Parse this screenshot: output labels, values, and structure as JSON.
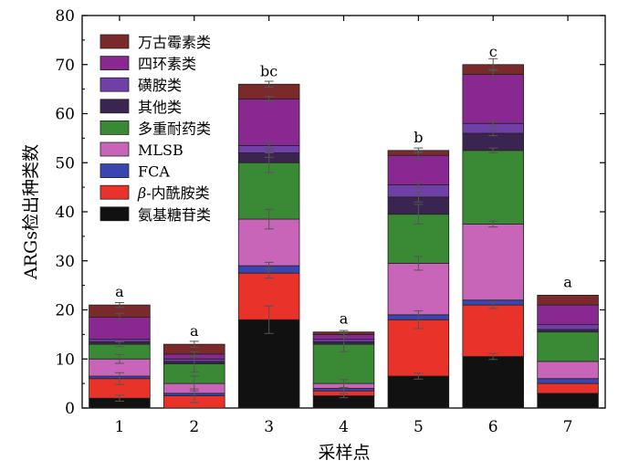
{
  "chart_data": {
    "type": "bar",
    "stacked": true,
    "categories": [
      "1",
      "2",
      "3",
      "4",
      "5",
      "6",
      "7"
    ],
    "xlabel": "采样点",
    "ylabel": "ARGs检出种类数",
    "ylim": [
      0,
      80
    ],
    "yticks": [
      0,
      10,
      20,
      30,
      40,
      50,
      60,
      70,
      80
    ],
    "grid": false,
    "legend_position": "top-left",
    "series": [
      {
        "name": "氨基糖苷类",
        "color": "#111111",
        "values": [
          2,
          0,
          18,
          2.5,
          6.5,
          10.5,
          3
        ],
        "errors": [
          0.6,
          0,
          2.8,
          0.4,
          0.6,
          0.6,
          0
        ]
      },
      {
        "name": "β-内酰胺类",
        "color": "#e8322a",
        "values": [
          4,
          2.5,
          9.5,
          1,
          11.5,
          10.5,
          2
        ],
        "errors": [
          1.2,
          1.4,
          1,
          0.6,
          1.8,
          0.7,
          0
        ]
      },
      {
        "name": "FCA",
        "color": "#3a46b0",
        "values": [
          0.5,
          0.5,
          1.5,
          0.5,
          1,
          1,
          1
        ],
        "errors": [
          0,
          0,
          0.7,
          0,
          0,
          0,
          0
        ]
      },
      {
        "name": "MLSB",
        "color": "#c865b8",
        "values": [
          3.5,
          2,
          9.5,
          1,
          10.5,
          15.5,
          3.5
        ],
        "errors": [
          0.9,
          1.5,
          2,
          0.8,
          1.4,
          0.6,
          0
        ]
      },
      {
        "name": "多重耐药类",
        "color": "#3a8a35",
        "values": [
          3,
          4,
          11.5,
          8,
          10,
          15,
          6
        ],
        "errors": [
          0.5,
          1.7,
          2,
          1.5,
          2,
          0.5,
          0
        ]
      },
      {
        "name": "其他类",
        "color": "#3a2550",
        "values": [
          0.5,
          0.5,
          2,
          0.5,
          3.5,
          3.5,
          0.5
        ],
        "errors": [
          0,
          0,
          0.9,
          0,
          1,
          0.5,
          0
        ]
      },
      {
        "name": "磺胺类",
        "color": "#7040a8",
        "values": [
          0.5,
          0.5,
          1.5,
          0.5,
          2.5,
          2,
          1
        ],
        "errors": [
          0,
          0,
          0.7,
          0,
          0.5,
          0.5,
          0
        ]
      },
      {
        "name": "四环素类",
        "color": "#882890",
        "values": [
          4.5,
          1,
          9.5,
          1,
          6,
          10,
          4
        ],
        "errors": [
          0.8,
          0.5,
          0.5,
          0.5,
          0.8,
          1,
          0
        ]
      },
      {
        "name": "万古霉素类",
        "color": "#7a2a2a",
        "values": [
          2.5,
          2,
          3,
          0.5,
          1,
          2,
          2
        ],
        "errors": [
          0.5,
          0.6,
          0.6,
          0.3,
          0.5,
          1.2,
          0
        ]
      }
    ],
    "annotations": [
      "a",
      "a",
      "bc",
      "a",
      "b",
      "c",
      "a"
    ]
  }
}
